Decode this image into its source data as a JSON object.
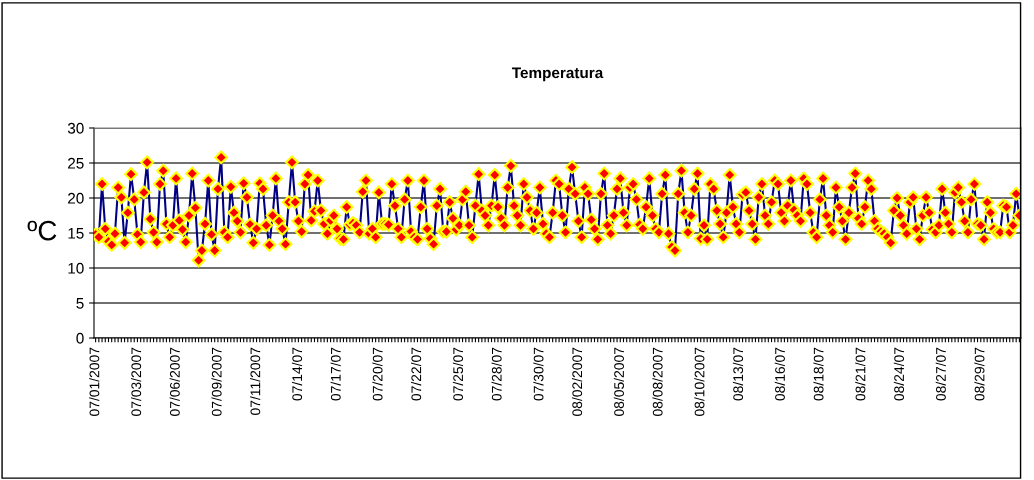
{
  "chart_data": {
    "type": "line",
    "title": "Temperatura",
    "ylabel": "ºC",
    "categories": [
      "07/01/2007",
      null,
      null,
      null,
      null,
      null,
      null,
      null,
      null,
      null,
      null,
      null,
      null,
      "07/03/2007",
      null,
      null,
      null,
      null,
      null,
      null,
      null,
      null,
      null,
      null,
      null,
      "07/06/2007",
      null,
      null,
      null,
      null,
      null,
      null,
      null,
      null,
      null,
      null,
      null,
      null,
      "07/09/2007",
      null,
      null,
      null,
      null,
      null,
      null,
      null,
      null,
      null,
      null,
      null,
      "07/11/2007",
      null,
      null,
      null,
      null,
      null,
      null,
      null,
      null,
      null,
      null,
      null,
      null,
      "07/14/07",
      null,
      null,
      null,
      null,
      null,
      null,
      null,
      null,
      null,
      null,
      null,
      "07/17/07",
      null,
      null,
      null,
      null,
      null,
      null,
      null,
      null,
      null,
      null,
      null,
      null,
      "07/20/07",
      null,
      null,
      null,
      null,
      null,
      null,
      null,
      null,
      null,
      null,
      null,
      "07/22/07",
      null,
      null,
      null,
      null,
      null,
      null,
      null,
      null,
      null,
      null,
      null,
      null,
      "07/25/07",
      null,
      null,
      null,
      null,
      null,
      null,
      null,
      null,
      null,
      null,
      null,
      "07/28/07",
      null,
      null,
      null,
      null,
      null,
      null,
      null,
      null,
      null,
      null,
      null,
      null,
      "07/30/07",
      null,
      null,
      null,
      null,
      null,
      null,
      null,
      null,
      null,
      null,
      null,
      "08/02/2007",
      null,
      null,
      null,
      null,
      null,
      null,
      null,
      null,
      null,
      null,
      null,
      null,
      "08/05/2007",
      null,
      null,
      null,
      null,
      null,
      null,
      null,
      null,
      null,
      null,
      null,
      "08/08/2007",
      null,
      null,
      null,
      null,
      null,
      null,
      null,
      null,
      null,
      null,
      null,
      null,
      "08/10/2007",
      null,
      null,
      null,
      null,
      null,
      null,
      null,
      null,
      null,
      null,
      null,
      "08/13/07",
      null,
      null,
      null,
      null,
      null,
      null,
      null,
      null,
      null,
      null,
      null,
      null,
      "08/16/07",
      null,
      null,
      null,
      null,
      null,
      null,
      null,
      null,
      null,
      null,
      null,
      "08/18/07",
      null,
      null,
      null,
      null,
      null,
      null,
      null,
      null,
      null,
      null,
      null,
      null,
      "08/21/07",
      null,
      null,
      null,
      null,
      null,
      null,
      null,
      null,
      null,
      null,
      null,
      "08/24/07",
      null,
      null,
      null,
      null,
      null,
      null,
      null,
      null,
      null,
      null,
      null,
      null,
      "08/27/07",
      null,
      null,
      null,
      null,
      null,
      null,
      null,
      null,
      null,
      null,
      null,
      "08/29/07",
      null,
      null,
      null,
      null,
      null,
      null,
      null,
      null,
      null,
      null,
      null,
      null
    ],
    "series": [
      {
        "color": "#000080",
        "values": [
          14.8,
          14.4,
          22.0,
          15.6,
          13.8,
          13.3,
          14.9,
          21.5,
          20.1,
          13.6,
          17.9,
          23.4,
          19.8,
          14.8,
          13.7,
          20.8,
          25.1,
          17.0,
          15.1,
          13.7,
          22.0,
          23.9,
          16.3,
          14.4,
          16.1,
          22.8,
          16.8,
          15.5,
          13.7,
          17.5,
          23.5,
          18.6,
          11.1,
          12.5,
          16.3,
          22.5,
          14.8,
          12.5,
          21.3,
          25.8,
          15.1,
          14.4,
          21.6,
          17.9,
          16.7,
          15.1,
          22.1,
          20.1,
          16.2,
          13.6,
          15.6,
          22.1,
          21.3,
          16.1,
          13.3,
          17.5,
          22.8,
          16.7,
          15.6,
          13.4,
          19.4,
          25.1,
          19.4,
          16.7,
          15.2,
          22.0,
          23.3,
          16.8,
          18.1,
          22.5,
          18.2,
          16.3,
          14.9,
          16.8,
          17.5,
          15.6,
          14.2,
          14.1,
          18.7,
          16.2,
          16.4,
          16.1,
          15.1,
          20.9,
          22.5,
          14.9,
          15.6,
          14.4,
          20.8,
          16.3,
          16.3,
          16.2,
          22.0,
          18.9,
          15.6,
          14.4,
          19.8,
          22.5,
          15.2,
          14.4,
          14.1,
          18.7,
          22.5,
          15.6,
          14.2,
          13.4,
          18.9,
          21.3,
          15.2,
          15.2,
          19.4,
          17.1,
          15.5,
          16.1,
          19.8,
          20.9,
          16.1,
          14.4,
          18.9,
          23.4,
          18.2,
          17.5,
          16.1,
          18.9,
          23.3,
          18.7,
          17.1,
          16.1,
          21.5,
          24.6,
          18.9,
          17.5,
          16.1,
          22.0,
          20.1,
          18.2,
          15.6,
          17.9,
          21.5,
          16.3,
          14.9,
          14.4,
          17.9,
          22.5,
          22.0,
          17.5,
          15.1,
          21.3,
          24.4,
          20.6,
          16.7,
          14.4,
          21.5,
          20.6,
          16.9,
          15.6,
          14.1,
          20.6,
          23.5,
          16.1,
          14.9,
          17.5,
          21.3,
          22.8,
          17.9,
          16.1,
          21.5,
          22.0,
          19.8,
          16.2,
          15.6,
          18.7,
          22.8,
          17.5,
          15.6,
          15.1,
          20.6,
          23.3,
          14.9,
          13.0,
          12.5,
          20.6,
          23.9,
          17.9,
          15.1,
          17.5,
          21.3,
          23.5,
          14.2,
          16.1,
          14.1,
          22.0,
          21.3,
          18.2,
          16.3,
          14.4,
          17.9,
          23.3,
          18.7,
          16.3,
          15.1,
          20.5,
          20.8,
          18.2,
          16.3,
          14.1,
          20.1,
          22.0,
          17.5,
          16.3,
          19.4,
          22.5,
          22.0,
          17.9,
          16.7,
          18.9,
          22.5,
          18.3,
          17.5,
          16.7,
          22.8,
          22.0,
          17.9,
          15.1,
          14.4,
          19.8,
          22.8,
          17.5,
          16.1,
          15.1,
          21.5,
          18.7,
          16.7,
          14.1,
          17.9,
          21.5,
          23.5,
          17.1,
          16.3,
          18.7,
          22.5,
          21.3,
          16.7,
          15.6,
          15.2,
          14.9,
          14.4,
          13.6,
          18.2,
          20.0,
          17.5,
          16.1,
          14.9,
          19.4,
          20.1,
          15.6,
          14.1,
          17.5,
          20.1,
          17.9,
          15.5,
          15.1,
          16.1,
          21.3,
          17.9,
          16.3,
          15.1,
          20.8,
          21.5,
          19.4,
          16.7,
          15.1,
          19.8,
          22.0,
          16.3,
          16.1,
          14.1,
          19.4,
          17.9,
          15.6,
          15.1,
          15.1,
          18.9,
          18.7,
          15.1,
          16.1,
          20.6,
          17.5
        ]
      }
    ],
    "ylim": [
      0,
      30
    ],
    "yticks": [
      0,
      5,
      10,
      15,
      20,
      25,
      30
    ],
    "grid": "y",
    "marker": "diamond",
    "line_style": "solid"
  }
}
